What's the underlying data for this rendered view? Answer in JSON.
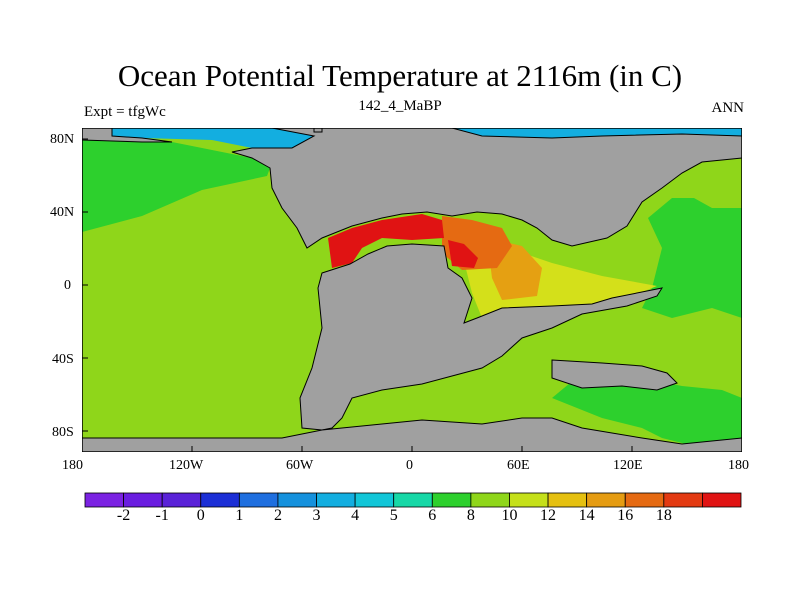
{
  "title": "Ocean Potential Temperature at 2116m (in C)",
  "left_label": "Expt = tfgWc",
  "center_label": "142_4_MaBP",
  "right_label": "ANN",
  "x_ticks": [
    "180",
    "120W",
    "60W",
    "0",
    "60E",
    "120E",
    "180"
  ],
  "y_ticks": [
    "80N",
    "40N",
    "0",
    "40S",
    "80S"
  ],
  "colorbar": {
    "colors": [
      "#7b22e2",
      "#6a1de0",
      "#5a22d8",
      "#1c2fd6",
      "#1f6fdf",
      "#1591dd",
      "#13aee0",
      "#12c6d8",
      "#17d8a7",
      "#2dd02d",
      "#8fd61a",
      "#c5e01a",
      "#e5c010",
      "#e59c12",
      "#e56a12",
      "#e33a12",
      "#e01313"
    ],
    "labels": [
      "-2",
      "-1",
      "0",
      "1",
      "2",
      "3",
      "4",
      "5",
      "6",
      "8",
      "10",
      "12",
      "14",
      "16",
      "18"
    ]
  },
  "colors": {
    "land": "#a0a0a0",
    "ocean_main": "#8fd61a",
    "ocean_green": "#2dd02d",
    "ocean_cyan": "#13aee0",
    "yellow": "#d4e01a",
    "orange_light": "#e5a012",
    "orange": "#e56a12",
    "red": "#e01313"
  }
}
